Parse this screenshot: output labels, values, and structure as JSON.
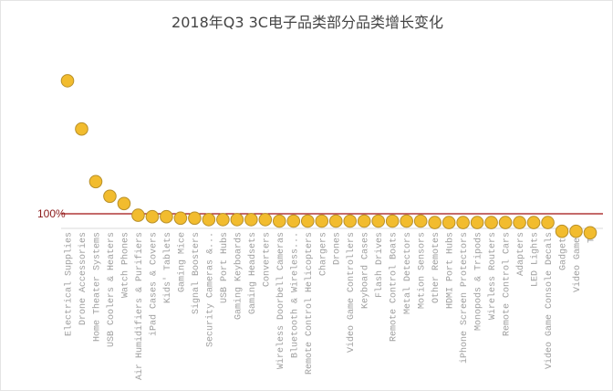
{
  "chart_data": {
    "type": "scatter",
    "title": "2018年Q3 3C电子品类部分品类增长变化",
    "xlabel": "",
    "ylabel": "",
    "ylim": [
      90,
      208
    ],
    "axis_crosses_at": 90,
    "grid": false,
    "legend": "none",
    "reference_line": {
      "value": 100,
      "label": "100%",
      "color": "#A01010"
    },
    "marker_color": "#F2BC2E",
    "marker_edge_color": "#B8902A",
    "categories": [
      "Electrical Supplies",
      "Drone Accessories",
      "Home Theater Systems",
      "USB Coolers & Heaters",
      "Watch Phones",
      "Air Humidifiers & Purifiers",
      "iPad Cases & Covers",
      "Kids' Tablets",
      "Gaming Mice",
      "Signal Boosters",
      "Security Cameras &...",
      "USB Port Hubs",
      "Gaming Keyboards",
      "Gaming Headsets",
      "Converters",
      "Wireless Doorbell Cameras",
      "Bluetooth & Wireless...",
      "Remote Control Helicopters",
      "Chargers",
      "Drones",
      "Video Game Controllers",
      "Keyboard Cases",
      "Flash Drives",
      "Remote Control Boats",
      "Metal Detectors",
      "Motion Sensors",
      "Other Remotes",
      "HDMI Port Hubs",
      "iPhone Screen Protectors",
      "Monopods & Tripods",
      "Wireless Routers",
      "Remote Control Cars",
      "Adapters",
      "LED Lights",
      "Video Game Console Decals",
      "Gadgets",
      "Video Games",
      "TV"
    ],
    "values": [
      191,
      158,
      122,
      112,
      107,
      99,
      98,
      98,
      97,
      97,
      96,
      96,
      96,
      96,
      96,
      95,
      95,
      95,
      95,
      95,
      95,
      95,
      95,
      95,
      95,
      95,
      94,
      94,
      94,
      94,
      94,
      94,
      94,
      94,
      94,
      88,
      88,
      87
    ]
  }
}
